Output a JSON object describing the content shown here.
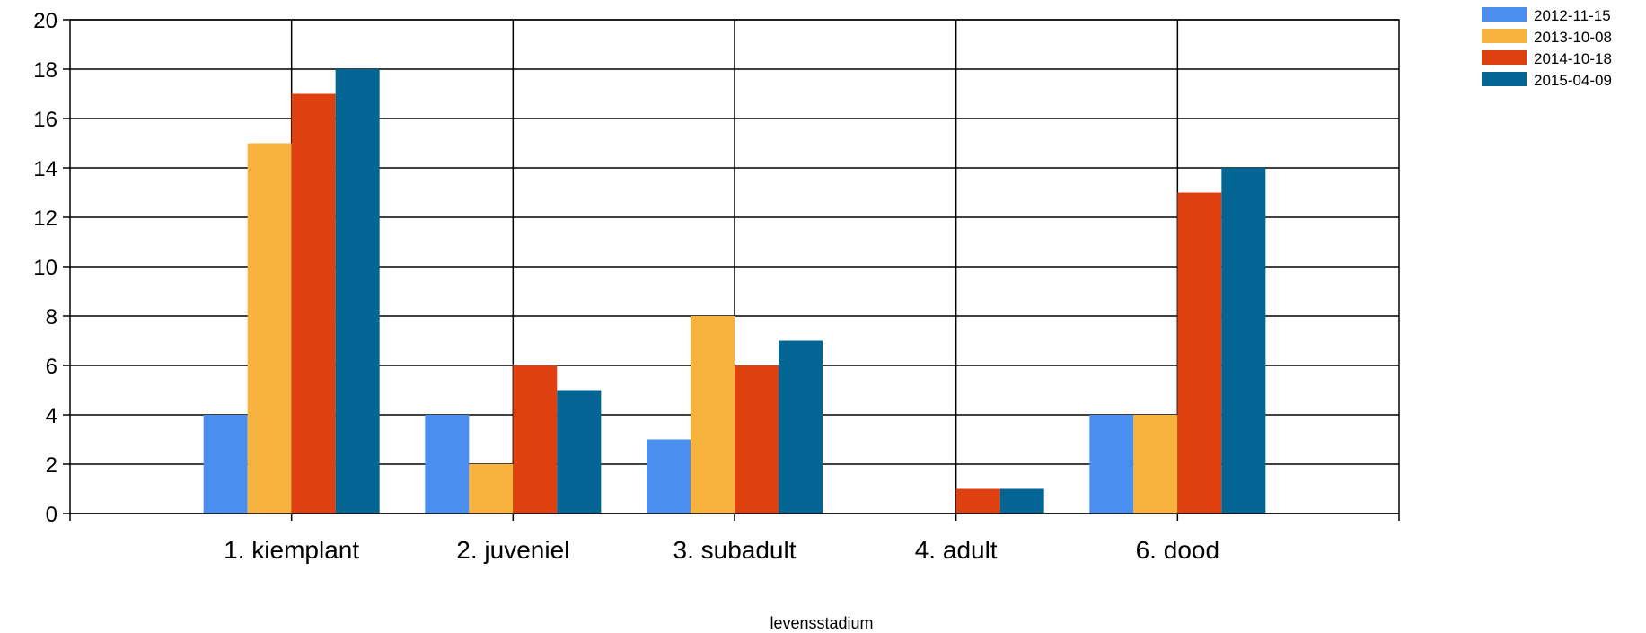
{
  "chart_data": {
    "type": "bar",
    "categories": [
      "1. kiemplant",
      "2. juveniel",
      "3. subadult",
      "4. adult",
      "6. dood"
    ],
    "series": [
      {
        "name": "2012-11-15",
        "color": "#4a8ff0",
        "values": [
          4,
          4,
          3,
          0,
          4
        ]
      },
      {
        "name": "2013-10-08",
        "color": "#f8b23e",
        "values": [
          15,
          2,
          8,
          0,
          4
        ]
      },
      {
        "name": "2014-10-18",
        "color": "#de4010",
        "values": [
          17,
          6,
          6,
          1,
          13
        ]
      },
      {
        "name": "2015-04-09",
        "color": "#036593",
        "values": [
          18,
          5,
          7,
          1,
          14
        ]
      }
    ],
    "title": "",
    "xlabel": "levensstadium",
    "ylabel": "",
    "ylim": [
      0,
      20
    ],
    "yticks": [
      0,
      2,
      4,
      6,
      8,
      10,
      12,
      14,
      16,
      18,
      20
    ],
    "grid": true,
    "legend_position": "top-right"
  }
}
